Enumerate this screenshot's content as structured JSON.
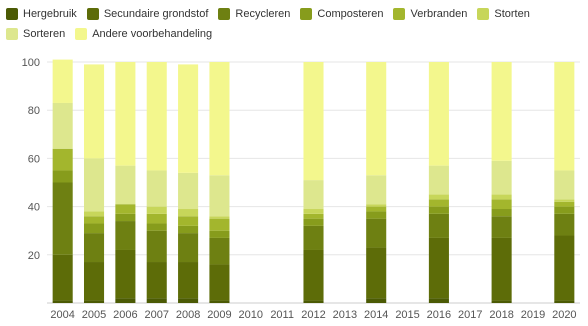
{
  "chart_data": {
    "type": "bar",
    "stacked": true,
    "title": "",
    "xlabel": "",
    "ylabel": "",
    "ylim": [
      0,
      100
    ],
    "yticks": [
      20,
      40,
      60,
      80,
      100
    ],
    "grid": true,
    "legend_position": "top",
    "categories": [
      "2004",
      "2005",
      "2006",
      "2007",
      "2008",
      "2009",
      "2010",
      "2011",
      "2012",
      "2013",
      "2014",
      "2015",
      "2016",
      "2017",
      "2018",
      "2019",
      "2020"
    ],
    "series": [
      {
        "name": "Hergebruik",
        "color": "#4b5a04",
        "values": [
          1,
          1,
          2,
          2,
          2,
          1,
          0,
          0,
          1,
          0,
          2,
          0,
          2,
          0,
          1,
          0,
          1
        ]
      },
      {
        "name": "Secundaire grondstof",
        "color": "#5d6c08",
        "values": [
          19,
          16,
          20,
          15,
          15,
          15,
          0,
          0,
          21,
          0,
          21,
          0,
          25,
          0,
          26,
          0,
          27
        ]
      },
      {
        "name": "Recycleren",
        "color": "#6e8012",
        "values": [
          30,
          12,
          12,
          13,
          12,
          11,
          0,
          0,
          10,
          0,
          12,
          0,
          10,
          0,
          9,
          0,
          9
        ]
      },
      {
        "name": "Composteren",
        "color": "#879c1c",
        "values": [
          5,
          4,
          3,
          3,
          3,
          3,
          0,
          0,
          3,
          0,
          3,
          0,
          3,
          0,
          3,
          0,
          3
        ]
      },
      {
        "name": "Verbranden",
        "color": "#a3b62d",
        "values": [
          9,
          3,
          4,
          4,
          4,
          5,
          0,
          0,
          2,
          0,
          2,
          0,
          3,
          0,
          4,
          0,
          2
        ]
      },
      {
        "name": "Storten",
        "color": "#c7d65a",
        "values": [
          0,
          2,
          0,
          3,
          3,
          1,
          0,
          0,
          2,
          0,
          1,
          0,
          2,
          0,
          2,
          0,
          1
        ]
      },
      {
        "name": "Sorteren",
        "color": "#dde78e",
        "values": [
          19,
          22,
          16,
          15,
          15,
          17,
          0,
          0,
          12,
          0,
          12,
          0,
          12,
          0,
          14,
          0,
          12
        ]
      },
      {
        "name": "Andere voorbehandeling",
        "color": "#f3f78d",
        "values": [
          18,
          39,
          43,
          45,
          45,
          47,
          0,
          0,
          49,
          0,
          47,
          0,
          43,
          0,
          41,
          0,
          45
        ]
      }
    ]
  }
}
